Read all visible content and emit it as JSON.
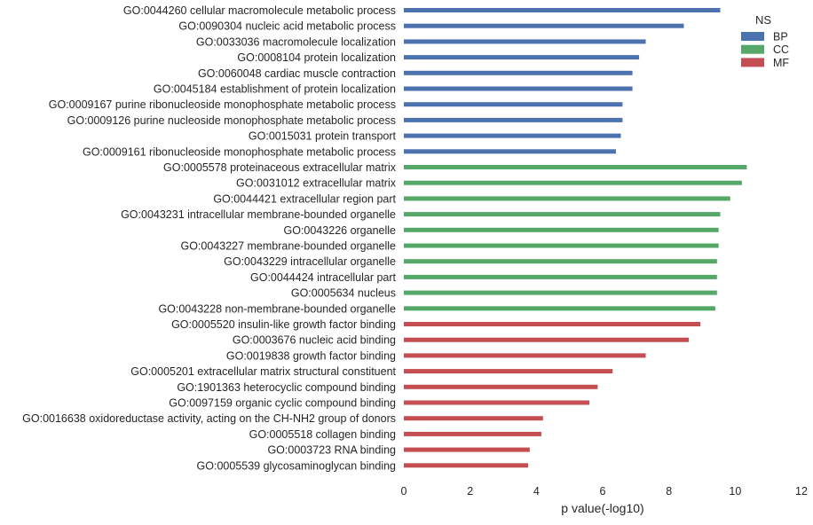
{
  "chart_data": {
    "type": "bar",
    "orientation": "horizontal",
    "xlabel": "p value(-log10)",
    "ylabel": "",
    "xlim": [
      0,
      12
    ],
    "xticks": [
      "0",
      "2",
      "4",
      "6",
      "8",
      "10",
      "12"
    ],
    "grid": false,
    "legend": {
      "title": "NS",
      "placement": "top-right",
      "entries": [
        {
          "name": "BP",
          "color": "#4c72b0"
        },
        {
          "name": "CC",
          "color": "#55a868"
        },
        {
          "name": "MF",
          "color": "#c44e52"
        }
      ]
    },
    "categories": [
      {
        "label": "GO:0044260 cellular macromolecule metabolic process",
        "value": 9.55,
        "ns": "BP"
      },
      {
        "label": "GO:0090304 nucleic acid metabolic process",
        "value": 8.45,
        "ns": "BP"
      },
      {
        "label": "GO:0033036 macromolecule localization",
        "value": 7.3,
        "ns": "BP"
      },
      {
        "label": "GO:0008104 protein localization",
        "value": 7.1,
        "ns": "BP"
      },
      {
        "label": "GO:0060048 cardiac muscle contraction",
        "value": 6.9,
        "ns": "BP"
      },
      {
        "label": "GO:0045184 establishment of protein localization",
        "value": 6.9,
        "ns": "BP"
      },
      {
        "label": "GO:0009167 purine ribonucleoside monophosphate metabolic process",
        "value": 6.6,
        "ns": "BP"
      },
      {
        "label": "GO:0009126 purine nucleoside monophosphate metabolic process",
        "value": 6.6,
        "ns": "BP"
      },
      {
        "label": "GO:0015031 protein transport",
        "value": 6.55,
        "ns": "BP"
      },
      {
        "label": "GO:0009161 ribonucleoside monophosphate metabolic process",
        "value": 6.4,
        "ns": "BP"
      },
      {
        "label": "GO:0005578 proteinaceous extracellular matrix",
        "value": 10.35,
        "ns": "CC"
      },
      {
        "label": "GO:0031012 extracellular matrix",
        "value": 10.2,
        "ns": "CC"
      },
      {
        "label": "GO:0044421 extracellular region part",
        "value": 9.85,
        "ns": "CC"
      },
      {
        "label": "GO:0043231 intracellular membrane-bounded organelle",
        "value": 9.55,
        "ns": "CC"
      },
      {
        "label": "GO:0043226 organelle",
        "value": 9.5,
        "ns": "CC"
      },
      {
        "label": "GO:0043227 membrane-bounded organelle",
        "value": 9.5,
        "ns": "CC"
      },
      {
        "label": "GO:0043229 intracellular organelle",
        "value": 9.45,
        "ns": "CC"
      },
      {
        "label": "GO:0044424 intracellular part",
        "value": 9.45,
        "ns": "CC"
      },
      {
        "label": "GO:0005634 nucleus",
        "value": 9.45,
        "ns": "CC"
      },
      {
        "label": "GO:0043228 non-membrane-bounded organelle",
        "value": 9.4,
        "ns": "CC"
      },
      {
        "label": "GO:0005520 insulin-like growth factor binding",
        "value": 8.95,
        "ns": "MF"
      },
      {
        "label": "GO:0003676 nucleic acid binding",
        "value": 8.6,
        "ns": "MF"
      },
      {
        "label": "GO:0019838 growth factor binding",
        "value": 7.3,
        "ns": "MF"
      },
      {
        "label": "GO:0005201 extracellular matrix structural constituent",
        "value": 6.3,
        "ns": "MF"
      },
      {
        "label": "GO:1901363 heterocyclic compound binding",
        "value": 5.85,
        "ns": "MF"
      },
      {
        "label": "GO:0097159 organic cyclic compound binding",
        "value": 5.6,
        "ns": "MF"
      },
      {
        "label": "GO:0016638 oxidoreductase activity, acting on the CH-NH2 group of donors",
        "value": 4.2,
        "ns": "MF"
      },
      {
        "label": "GO:0005518 collagen binding",
        "value": 4.15,
        "ns": "MF"
      },
      {
        "label": "GO:0003723 RNA binding",
        "value": 3.8,
        "ns": "MF"
      },
      {
        "label": "GO:0005539 glycosaminoglycan binding",
        "value": 3.75,
        "ns": "MF"
      }
    ]
  }
}
